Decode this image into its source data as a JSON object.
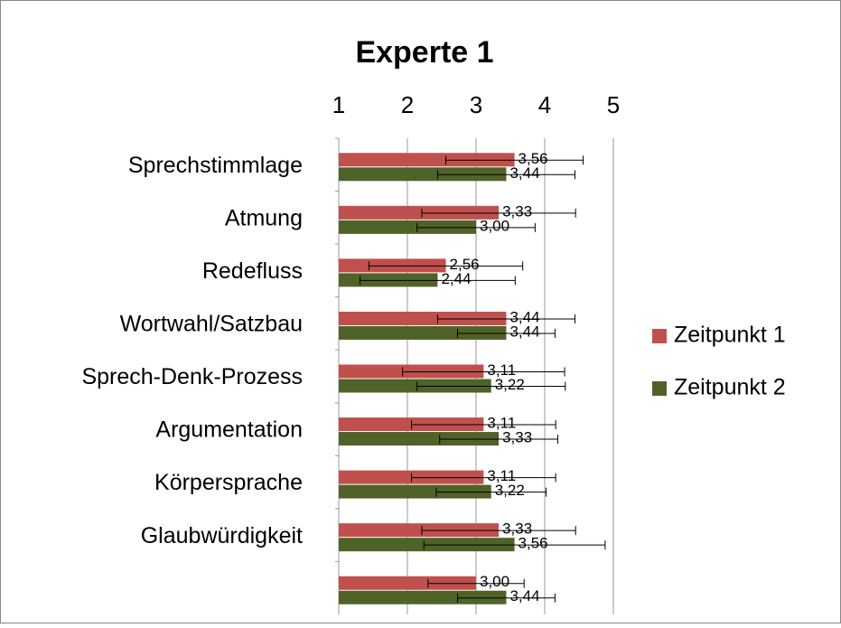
{
  "chart_data": {
    "type": "bar",
    "orientation": "horizontal",
    "title": "Experte 1",
    "categories": [
      "Sprechstimmlage",
      "Atmung",
      "Redefluss",
      "Wortwahl/Satzbau",
      "Sprech-Denk-Prozess",
      "Argumentation",
      "Körpersprache",
      "Glaubwürdigkeit",
      null
    ],
    "series": [
      {
        "name": "Zeitpunkt 1",
        "color": "#c0504d",
        "values": [
          3.56,
          3.33,
          2.56,
          3.44,
          3.11,
          3.11,
          3.11,
          3.33,
          3.0
        ],
        "value_labels": [
          "3,56",
          "3,33",
          "2,56",
          "3,44",
          "3,11",
          "3,11",
          "3,11",
          "3,33",
          "3,00"
        ],
        "errors": [
          1.0,
          1.12,
          1.12,
          1.0,
          1.18,
          1.05,
          1.05,
          1.12,
          0.7
        ]
      },
      {
        "name": "Zeitpunkt 2",
        "color": "#4f6228",
        "values": [
          3.44,
          3.0,
          2.44,
          3.44,
          3.22,
          3.33,
          3.22,
          3.56,
          3.44
        ],
        "value_labels": [
          "3,44",
          "3,00",
          "2,44",
          "3,44",
          "3,22",
          "3,33",
          "3,22",
          "3,56",
          "3,44"
        ],
        "errors": [
          1.0,
          0.86,
          1.13,
          0.71,
          1.08,
          0.86,
          0.8,
          1.32,
          0.71
        ]
      }
    ],
    "xlim": [
      1,
      5
    ],
    "xticks": [
      1,
      2,
      3,
      4,
      5
    ],
    "grid": true,
    "legend": "right"
  }
}
